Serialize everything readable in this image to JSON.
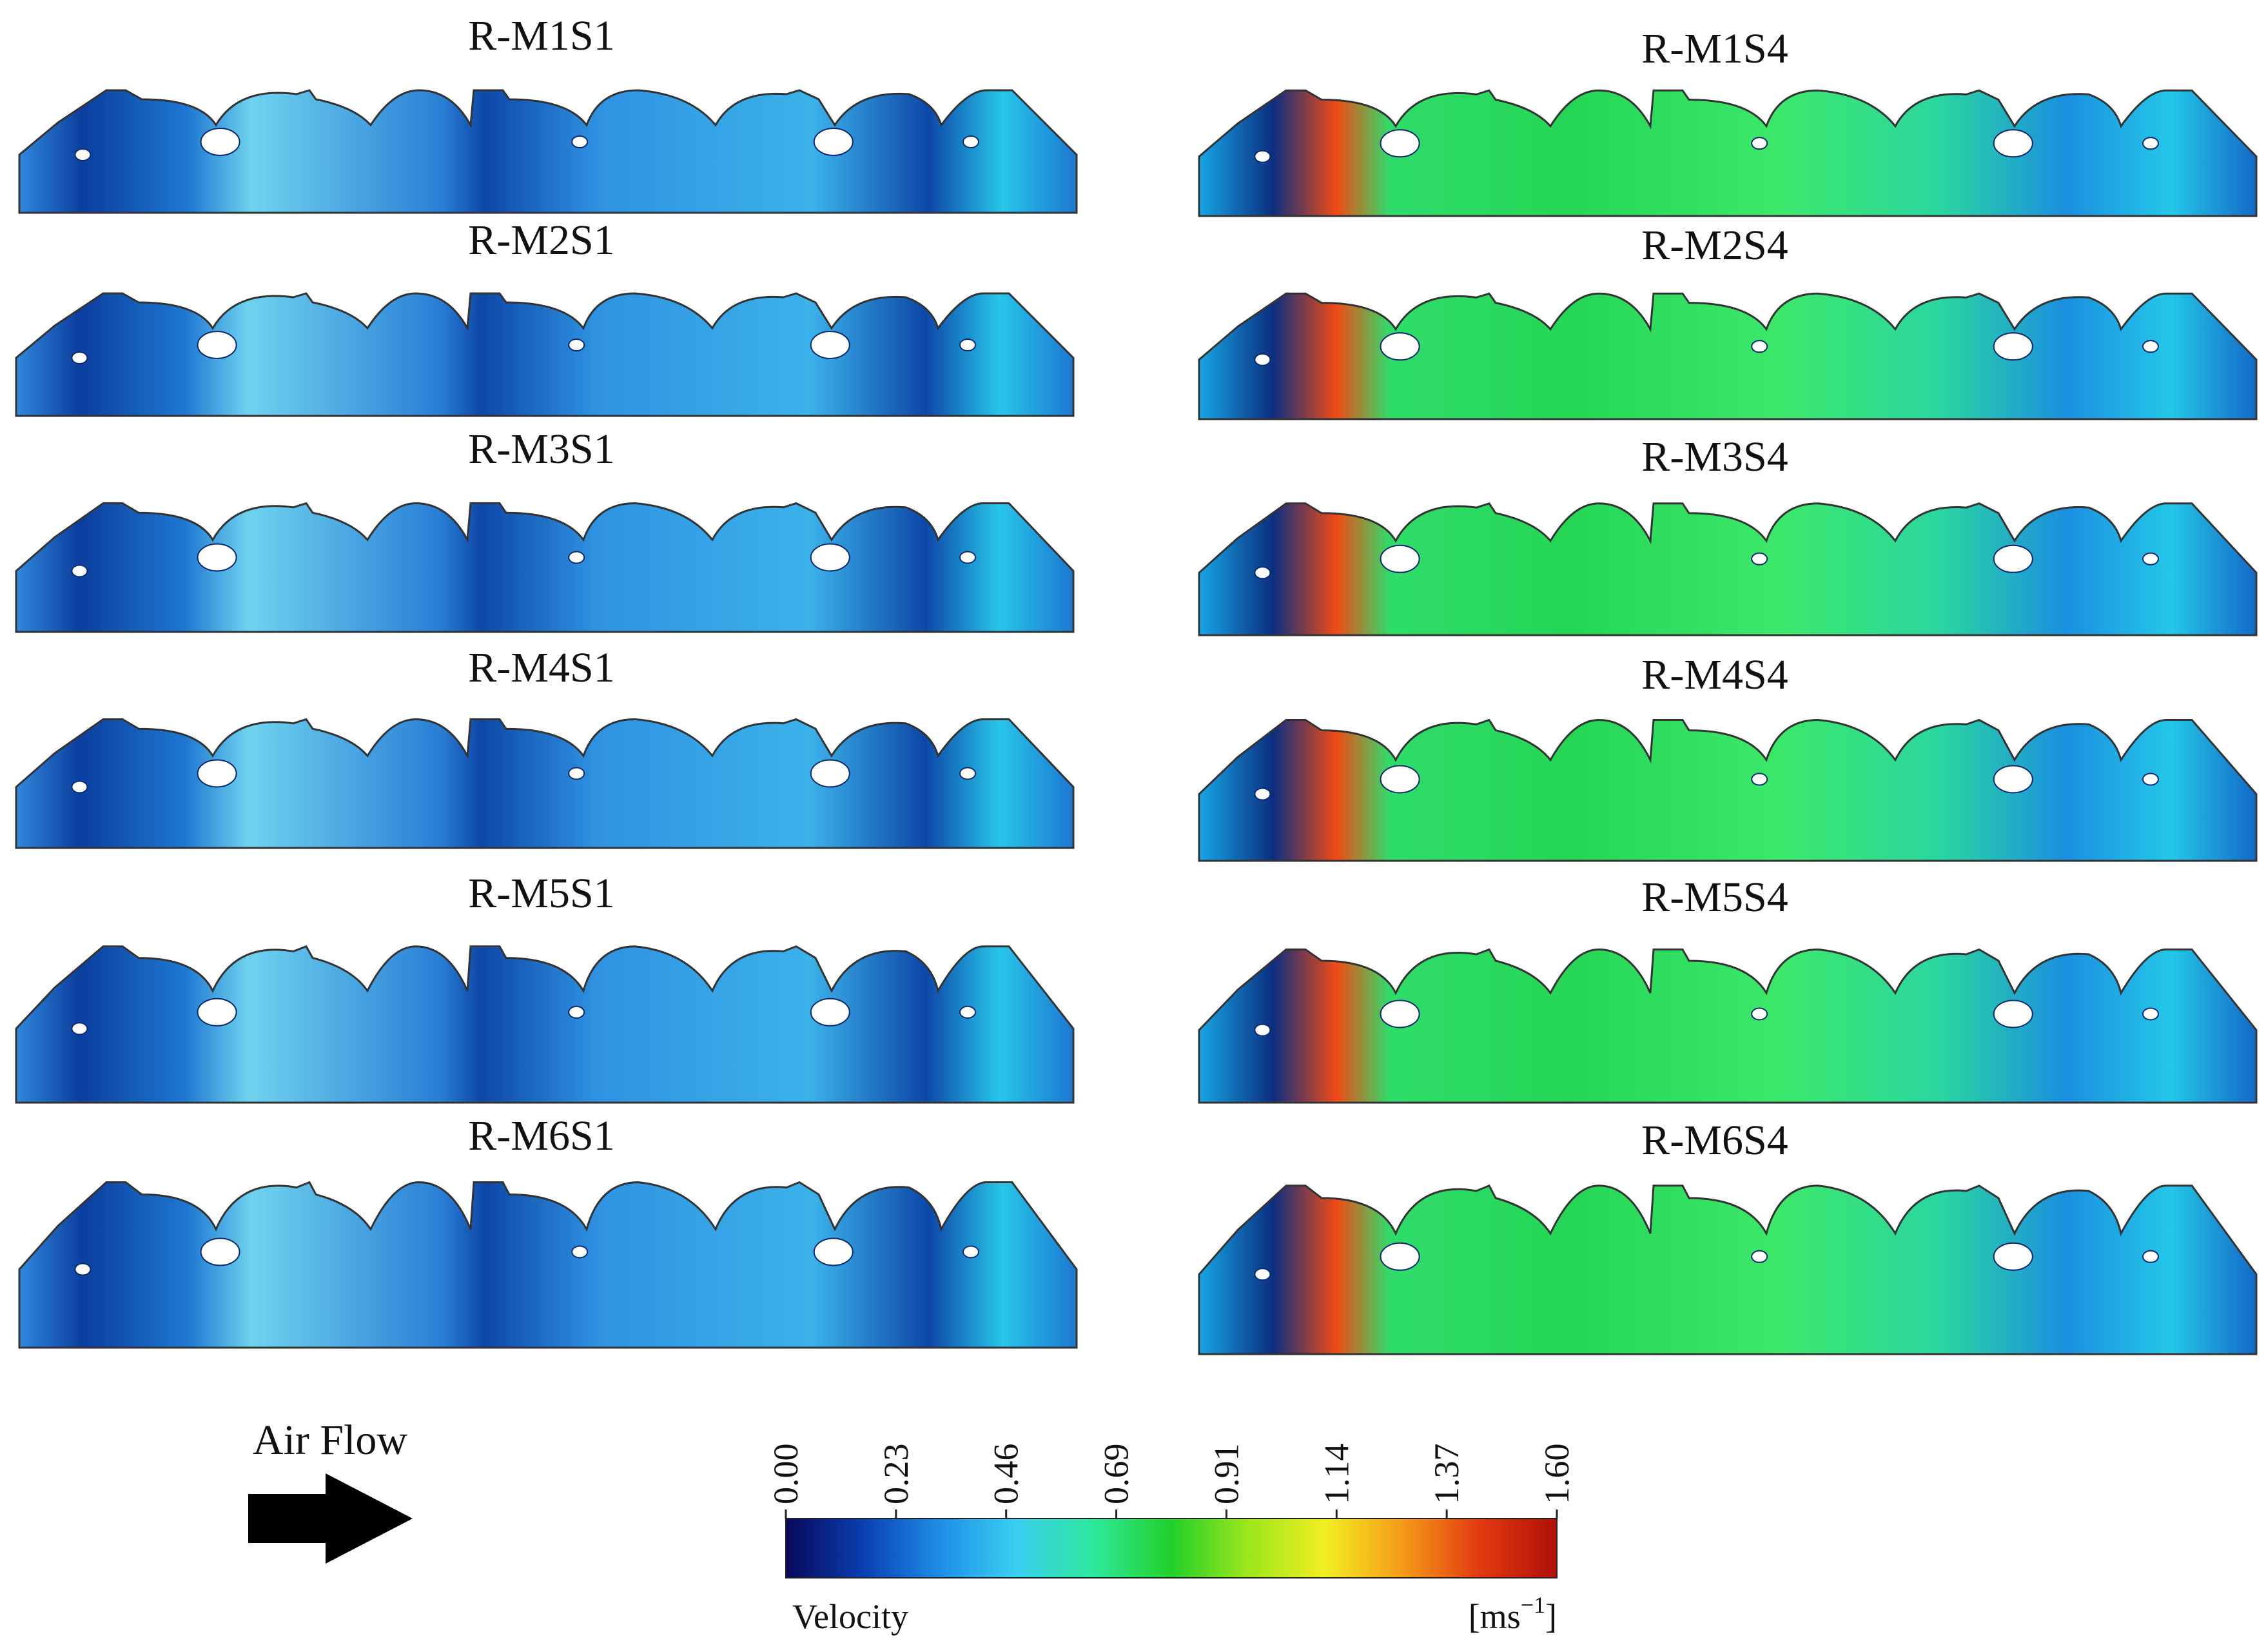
{
  "panels": {
    "left": [
      "R-M1S1",
      "R-M2S1",
      "R-M3S1",
      "R-M4S1",
      "R-M5S1",
      "R-M6S1"
    ],
    "right": [
      "R-M1S4",
      "R-M2S4",
      "R-M3S4",
      "R-M4S4",
      "R-M5S4",
      "R-M6S4"
    ]
  },
  "airflow": {
    "label": "Air Flow",
    "arrow_icon": "right-arrow-icon"
  },
  "colorbar": {
    "ticks": [
      "0.00",
      "0.23",
      "0.46",
      "0.69",
      "0.91",
      "1.14",
      "1.37",
      "1.60"
    ],
    "min": 0.0,
    "max": 1.6,
    "label": "Velocity",
    "unit_prefix": "[ms",
    "unit_exp": "−1",
    "unit_suffix": "]",
    "colors": [
      "#08085a",
      "#0a3fb0",
      "#1e8ee8",
      "#3ad0f0",
      "#2ee89a",
      "#22d02a",
      "#9ee61c",
      "#f2ee22",
      "#f59a18",
      "#e23a10",
      "#b01008"
    ]
  }
}
